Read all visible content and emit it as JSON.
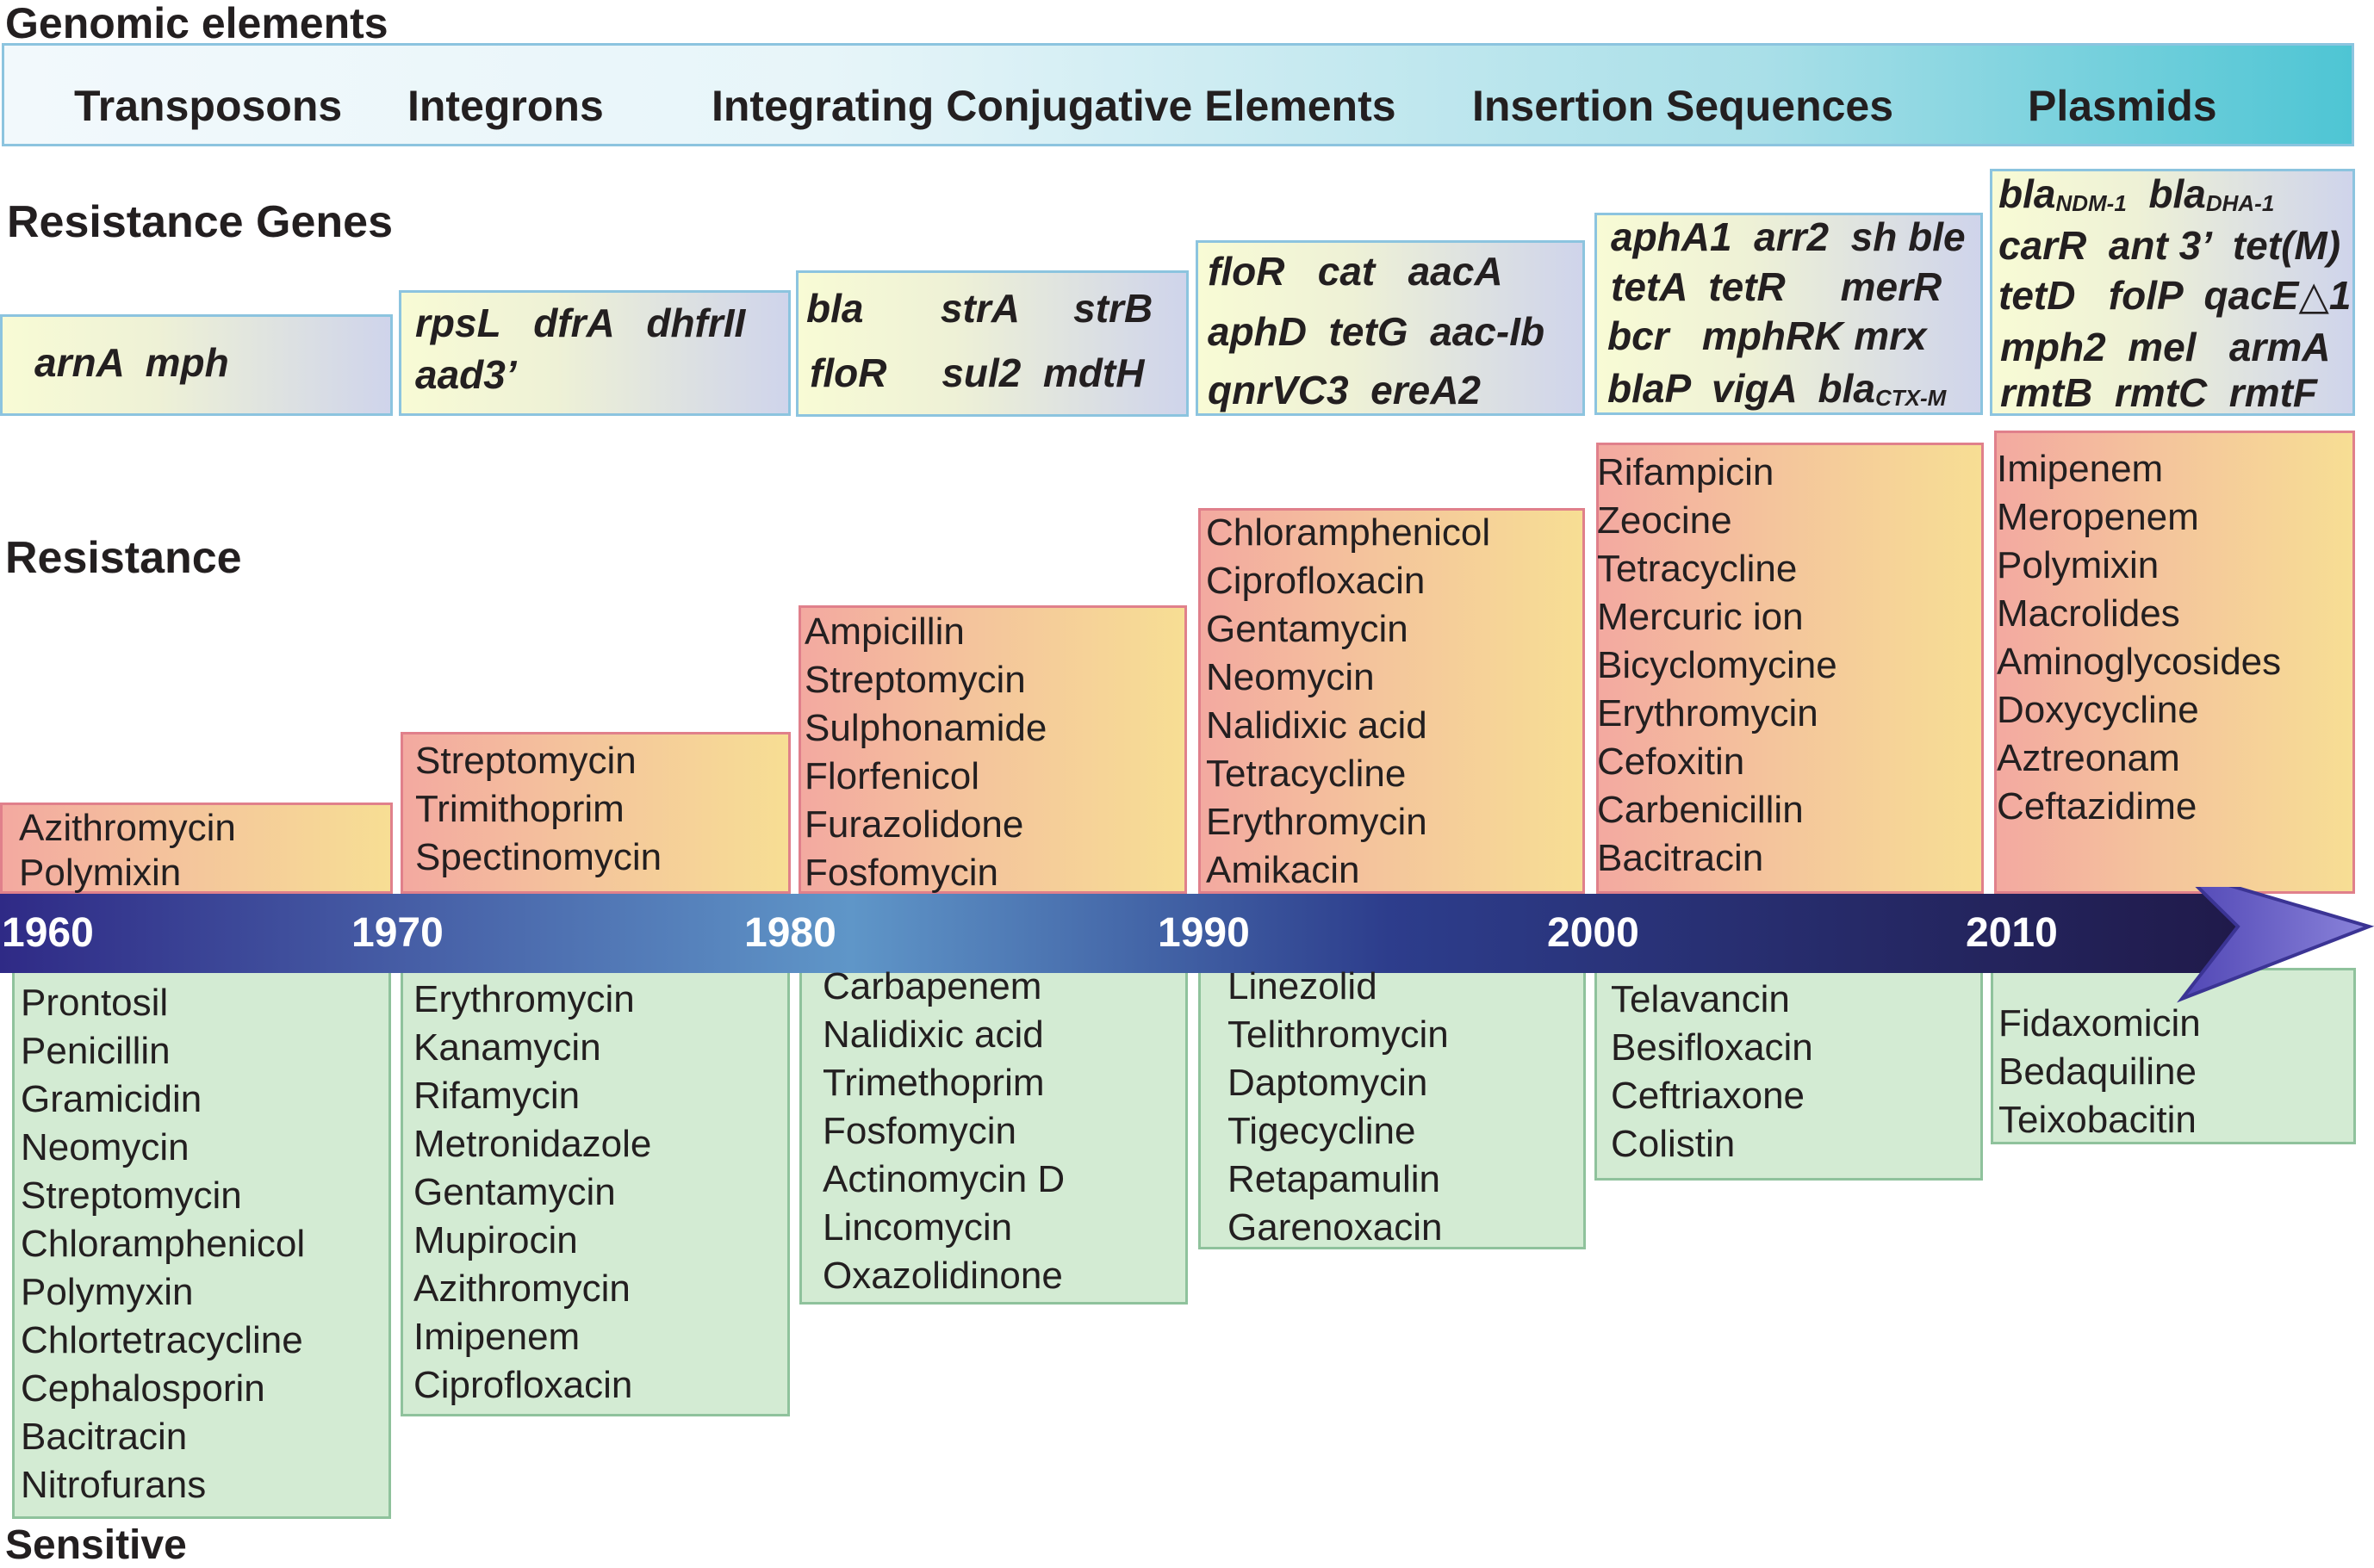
{
  "labels": {
    "genomic_elements": "Genomic elements",
    "resistance_genes": "Resistance Genes",
    "resistance": "Resistance",
    "sensitive": "Sensitive"
  },
  "genomic_elements": [
    "Transposons",
    "Integrons",
    "Integrating Conjugative Elements",
    "Insertion Sequences",
    "Plasmids"
  ],
  "years": [
    "1960",
    "1970",
    "1980",
    "1990",
    "2000",
    "2010"
  ],
  "resistance_genes": {
    "1960": [
      "arnA  mph"
    ],
    "1970": [
      "rpsL   dfrA   dhfrII",
      "aad3’"
    ],
    "1980": [
      "bla       strA     strB",
      "floR     sul2  mdtH"
    ],
    "1990": [
      "floR   cat   aacA",
      "aphD  tetG  aac-Ib",
      "qnrVC3  ereA2"
    ],
    "2000": [
      "aphA1  arr2  sh ble",
      "tetA  tetR     merR",
      "bcr   mphRK mrx",
      "blaP  vigA  blaCTX-M"
    ],
    "2010": [
      "blaNDM-1  blaDHA-1",
      "carR  ant 3’  tet(M)",
      "tetD   folP  qacE△1",
      "mph2  mel   armA",
      "rmtB  rmtC  rmtF"
    ]
  },
  "resistance": {
    "1960": [
      "Azithromycin",
      "Polymixin"
    ],
    "1970": [
      "Streptomycin",
      "Trimithoprim",
      "Spectinomycin"
    ],
    "1980": [
      "Ampicillin",
      "Streptomycin",
      "Sulphonamide",
      "Florfenicol",
      "Furazolidone",
      "Fosfomycin"
    ],
    "1990": [
      "Chloramphenicol",
      "Ciprofloxacin",
      "Gentamycin",
      "Neomycin",
      "Nalidixic acid",
      "Tetracycline",
      "Erythromycin",
      "Amikacin"
    ],
    "2000": [
      "Rifampicin",
      "Zeocine",
      "Tetracycline",
      "Mercuric ion",
      "Bicyclomycine",
      "Erythromycin",
      "Cefoxitin",
      "Carbenicillin",
      "Bacitracin"
    ],
    "2010": [
      "Imipenem",
      "Meropenem",
      "Polymixin",
      "Macrolides",
      "Aminoglycosides",
      "Doxycycline",
      "Aztreonam",
      "Ceftazidime"
    ]
  },
  "sensitive": {
    "1960": [
      "Prontosil",
      "Penicillin",
      "Gramicidin",
      "Neomycin",
      "Streptomycin",
      "Chloramphenicol",
      "Polymyxin",
      "Chlortetracycline",
      "Cephalosporin",
      "Bacitracin",
      "Nitrofurans"
    ],
    "1970": [
      "Erythromycin",
      "Kanamycin",
      "Rifamycin",
      "Metronidazole",
      "Gentamycin",
      "Mupirocin",
      "Azithromycin",
      "Imipenem",
      "Ciprofloxacin"
    ],
    "1980": [
      "Carbapenem",
      "Nalidixic acid",
      "Trimethoprim",
      "Fosfomycin",
      "Actinomycin D",
      "Lincomycin",
      "Oxazolidinone"
    ],
    "1990": [
      "Linezolid",
      "Telithromycin",
      "Daptomycin",
      "Tigecycline",
      "Retapamulin",
      "Garenoxacin"
    ],
    "2000": [
      "Telavancin",
      "Besifloxacin",
      "Ceftriaxone",
      "Colistin"
    ],
    "2010": [
      "Fidaxomicin",
      "Bedaquiline",
      "Teixobacitin"
    ]
  },
  "colors": {
    "timeline_start": "#2f2a86",
    "timeline_mid": "#5f96c8",
    "timeline_end": "#201a4a",
    "arrow_head": "#6b63c6",
    "gene_border": "#8cc4df",
    "resistance_border": "#e0808b",
    "sensitive_border": "#8fc29c",
    "sensitive_fill": "#d3ebd3"
  }
}
